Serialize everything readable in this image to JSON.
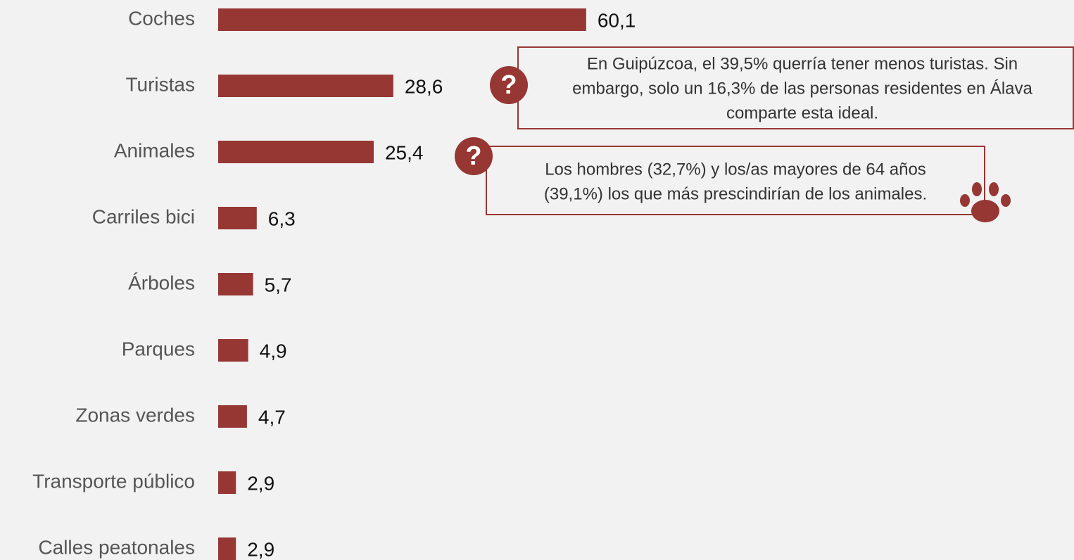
{
  "chart_data": {
    "type": "bar",
    "orientation": "horizontal",
    "categories": [
      "Coches",
      "Turistas",
      "Animales",
      "Carriles bici",
      "Árboles",
      "Parques",
      "Zonas verdes",
      "Transporte público",
      "Calles peatonales"
    ],
    "values": [
      60.1,
      28.6,
      25.4,
      6.3,
      5.7,
      4.9,
      4.7,
      2.9,
      2.9
    ],
    "value_labels": [
      "60,1",
      "28,6",
      "25,4",
      "6,3",
      "5,7",
      "4,9",
      "4,7",
      "2,9",
      "2,9"
    ],
    "color": "#963734",
    "annotations": [
      {
        "lines": [
          "En Guipúzcoa, el 39,5% querría tener menos turistas. Sin",
          "embargo, solo un 16,3% de las personas residentes en Álava",
          "comparte esta ideal."
        ]
      },
      {
        "lines": [
          "Los hombres (32,7%) y los/as mayores de 64 años",
          "(39,1%) los que más prescindirían de los animales."
        ]
      }
    ]
  }
}
